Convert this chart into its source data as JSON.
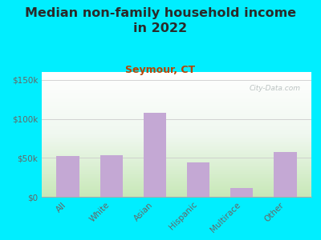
{
  "title": "Median non-family household income\nin 2022",
  "subtitle": "Seymour, CT",
  "categories": [
    "All",
    "White",
    "Asian",
    "Hispanic",
    "Multirace",
    "Other"
  ],
  "values": [
    52000,
    53000,
    108000,
    44000,
    11000,
    57000
  ],
  "bar_color": "#c4a8d4",
  "background_outer": "#00eeff",
  "background_chart_top": "#e8f4e8",
  "background_chart_bottom": "#d4eecc",
  "title_color": "#2a2a2a",
  "subtitle_color": "#b84400",
  "tick_label_color": "#666666",
  "ylim": [
    0,
    160000
  ],
  "yticks": [
    0,
    50000,
    100000,
    150000
  ],
  "ytick_labels": [
    "$0",
    "$50k",
    "$100k",
    "$150k"
  ],
  "watermark": "City-Data.com",
  "title_fontsize": 11.5,
  "subtitle_fontsize": 9,
  "tick_fontsize": 7.5
}
